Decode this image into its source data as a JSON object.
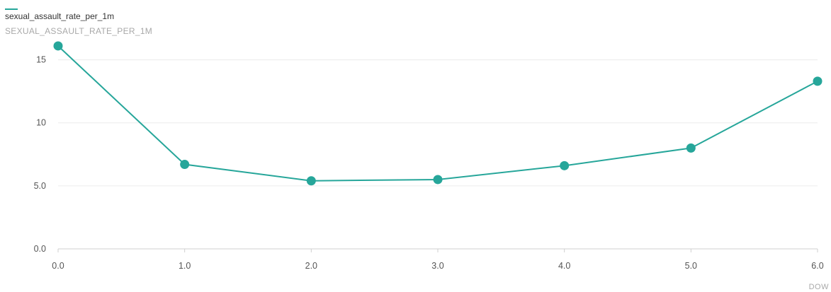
{
  "chart_data": {
    "type": "line",
    "xlabel": "DOW",
    "ylabel": "SEXUAL_ASSAULT_RATE_PER_1M",
    "xlim": [
      0,
      6
    ],
    "ylim": [
      0,
      17.5
    ],
    "x_ticks": [
      0,
      1,
      2,
      3,
      4,
      5,
      6
    ],
    "x_tick_labels": [
      "0.0",
      "1.0",
      "2.0",
      "3.0",
      "4.0",
      "5.0",
      "6.0"
    ],
    "y_ticks": [
      0,
      5,
      10,
      15
    ],
    "y_tick_labels": [
      "0.0",
      "5.0",
      "10",
      "15"
    ],
    "grid": true,
    "legend_position": "top-left",
    "series": [
      {
        "name": "sexual_assault_rate_per_1m",
        "color": "#26a69a",
        "x": [
          0,
          1,
          2,
          3,
          4,
          5,
          6
        ],
        "values": [
          16.1,
          6.7,
          5.4,
          5.5,
          6.6,
          8.0,
          13.3
        ]
      }
    ]
  }
}
